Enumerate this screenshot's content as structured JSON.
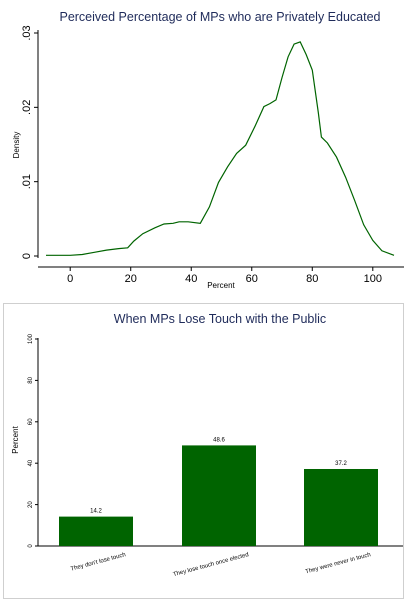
{
  "colors": {
    "series": "#006400",
    "title": "#1f2b5a",
    "frame": "#cfcfcf"
  },
  "chart_data": [
    {
      "type": "line",
      "title": "Perceived Percentage of MPs who are Privately Educated",
      "xlabel": "Percent",
      "ylabel": "Density",
      "xlim": [
        -8,
        108
      ],
      "ylim": [
        0,
        0.03
      ],
      "xticks": [
        0,
        20,
        40,
        60,
        80,
        100
      ],
      "xtick_labels": [
        "0",
        "20",
        "40",
        "60",
        "80",
        "100"
      ],
      "yticks": [
        0,
        0.01,
        0.02,
        0.03
      ],
      "ytick_labels": [
        "0",
        ".01",
        ".02",
        ".03"
      ],
      "grid": false,
      "series": [
        {
          "x": [
            -8,
            -4,
            0,
            4,
            8,
            12,
            16,
            19,
            21,
            24,
            28,
            31,
            34,
            36,
            39,
            43,
            46,
            49,
            52,
            55,
            58,
            61,
            64,
            66,
            68,
            70,
            72,
            74,
            76,
            78,
            80,
            82,
            83,
            85,
            88,
            91,
            94,
            97,
            100,
            103,
            107
          ],
          "y": [
            0.0001,
            0.0001,
            0.0001,
            0.0002,
            0.0005,
            0.0008,
            0.001,
            0.0011,
            0.002,
            0.003,
            0.0038,
            0.0043,
            0.0044,
            0.0046,
            0.0046,
            0.0044,
            0.0066,
            0.0099,
            0.012,
            0.0138,
            0.0149,
            0.0174,
            0.0201,
            0.0205,
            0.021,
            0.024,
            0.0268,
            0.0285,
            0.0288,
            0.0271,
            0.025,
            0.0193,
            0.016,
            0.0152,
            0.0133,
            0.0106,
            0.0075,
            0.0042,
            0.0021,
            0.0007,
            0.0001
          ]
        }
      ]
    },
    {
      "type": "bar",
      "title": "When MPs Lose Touch with the Public",
      "ylabel": "Percent",
      "ylim": [
        0,
        100
      ],
      "yticks": [
        0,
        20,
        40,
        60,
        80,
        100
      ],
      "ytick_labels": [
        "0",
        "20",
        "40",
        "60",
        "80",
        "100"
      ],
      "grid": false,
      "categories": [
        "They don't lose touch",
        "They lose touch once elected",
        "They were never in touch"
      ],
      "values": [
        14.2,
        48.6,
        37.2
      ],
      "value_labels": [
        "14.2",
        "48.6",
        "37.2"
      ]
    }
  ]
}
